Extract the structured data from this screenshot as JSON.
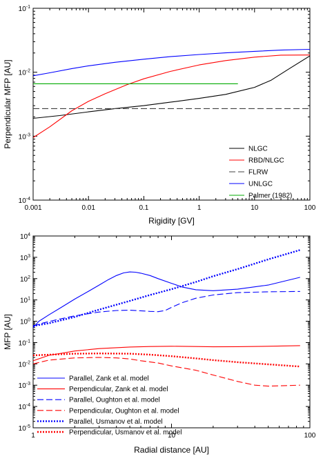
{
  "chart_data": [
    {
      "type": "line",
      "xscale": "log",
      "yscale": "log",
      "xlabel": "Rigidity [GV]",
      "ylabel": "Perpendicular MFP [AU]",
      "xlim": [
        0.001,
        100
      ],
      "ylim": [
        0.0001,
        0.1
      ],
      "x_ticks": [
        "0.001",
        "0.01",
        "0.1",
        "1",
        "10",
        "100"
      ],
      "y_ticks": [
        {
          "base": "10",
          "exp": "-4"
        },
        {
          "base": "10",
          "exp": "-3"
        },
        {
          "base": "10",
          "exp": "-2"
        },
        {
          "base": "10",
          "exp": "-1"
        }
      ],
      "legend_position": "lower-right",
      "series": [
        {
          "name": "NLGC",
          "color": "#000000",
          "style": "solid",
          "x": [
            0.001,
            0.003,
            0.01,
            0.03,
            0.1,
            0.3,
            1,
            3,
            10,
            20,
            40,
            100
          ],
          "y": [
            0.0019,
            0.0021,
            0.0024,
            0.0027,
            0.003,
            0.0034,
            0.0039,
            0.0045,
            0.0058,
            0.0075,
            0.011,
            0.018
          ]
        },
        {
          "name": "RBD/NLGC",
          "color": "#ff0000",
          "style": "solid",
          "x": [
            0.001,
            0.002,
            0.005,
            0.01,
            0.02,
            0.05,
            0.1,
            0.3,
            1,
            3,
            10,
            30,
            100
          ],
          "y": [
            0.00095,
            0.0014,
            0.0025,
            0.0035,
            0.0046,
            0.0064,
            0.0079,
            0.0103,
            0.013,
            0.0152,
            0.0172,
            0.0185,
            0.0186
          ]
        },
        {
          "name": "FLRW",
          "color": "#404040",
          "style": "dashed",
          "x": [
            0.001,
            100
          ],
          "y": [
            0.0027,
            0.0027
          ]
        },
        {
          "name": "UNLGC",
          "color": "#0000ff",
          "style": "solid",
          "x": [
            0.001,
            0.002,
            0.005,
            0.01,
            0.03,
            0.1,
            0.3,
            1,
            3,
            10,
            30,
            100
          ],
          "y": [
            0.0088,
            0.0098,
            0.0114,
            0.0126,
            0.0143,
            0.016,
            0.0175,
            0.0189,
            0.0201,
            0.0212,
            0.0222,
            0.0228
          ]
        },
        {
          "name": "Palmer (1982)",
          "color": "#00aa00",
          "style": "solid",
          "x": [
            0.001,
            5
          ],
          "y": [
            0.0066,
            0.0066
          ]
        }
      ]
    },
    {
      "type": "line",
      "xscale": "log",
      "yscale": "log",
      "xlabel": "Radial distance [AU]",
      "ylabel": "MFP [AU]",
      "xlim": [
        1,
        100
      ],
      "ylim": [
        1e-05,
        10000
      ],
      "x_ticks": [
        "1",
        "10",
        "100"
      ],
      "y_ticks": [
        {
          "base": "10",
          "exp": "-5"
        },
        {
          "base": "10",
          "exp": "-4"
        },
        {
          "base": "10",
          "exp": "-3"
        },
        {
          "base": "10",
          "exp": "-2"
        },
        {
          "base": "10",
          "exp": "-1"
        },
        {
          "base": "10",
          "exp": "0"
        },
        {
          "base": "10",
          "exp": "1"
        },
        {
          "base": "10",
          "exp": "2"
        },
        {
          "base": "10",
          "exp": "3"
        },
        {
          "base": "10",
          "exp": "4"
        }
      ],
      "legend_position": "lower-left",
      "series": [
        {
          "name": "Parallel, Zank et al. model",
          "color": "#0000ff",
          "style": "solid",
          "x": [
            1,
            1.1,
            1.3,
            1.6,
            2,
            2.5,
            3,
            3.5,
            4,
            4.5,
            5,
            5.5,
            6,
            7,
            8,
            10,
            12,
            15,
            20,
            30,
            50,
            85
          ],
          "y": [
            0.5,
            1.0,
            2.0,
            4.5,
            11,
            25,
            50,
            90,
            140,
            185,
            205,
            200,
            180,
            140,
            100,
            60,
            40,
            30,
            27,
            32,
            50,
            115
          ]
        },
        {
          "name": "Perpendicular, Zank et al. model",
          "color": "#ff0000",
          "style": "solid",
          "x": [
            1,
            1.3,
            2,
            3,
            5,
            7,
            10,
            15,
            20,
            30,
            50,
            85
          ],
          "y": [
            0.014,
            0.025,
            0.04,
            0.052,
            0.062,
            0.065,
            0.067,
            0.065,
            0.063,
            0.064,
            0.067,
            0.072
          ]
        },
        {
          "name": "Parallel, Oughton et al. model",
          "color": "#0000ff",
          "style": "dashed",
          "x": [
            1,
            1.2,
            1.5,
            2,
            3,
            4,
            5,
            6,
            7,
            8,
            9,
            10,
            12,
            15,
            20,
            30,
            50,
            85
          ],
          "y": [
            0.6,
            0.85,
            1.2,
            1.8,
            2.7,
            3.2,
            3.3,
            3.1,
            2.9,
            2.8,
            3.2,
            4.5,
            7.5,
            12,
            17,
            22,
            24,
            25
          ]
        },
        {
          "name": "Perpendicular, Oughton et al. model",
          "color": "#ff0000",
          "style": "dashed",
          "x": [
            1,
            1.3,
            2,
            3,
            4,
            5,
            6,
            8,
            10,
            15,
            20,
            30,
            40,
            50,
            85
          ],
          "y": [
            0.01,
            0.015,
            0.019,
            0.02,
            0.019,
            0.017,
            0.014,
            0.011,
            0.008,
            0.005,
            0.003,
            0.0015,
            0.001,
            0.0009,
            0.001
          ]
        },
        {
          "name": "Parallel, Usmanov et al. model",
          "color": "#0000ff",
          "style": "dotted",
          "x": [
            1,
            1.3,
            2,
            3,
            5,
            7,
            10,
            15,
            20,
            30,
            50,
            85
          ],
          "y": [
            0.6,
            0.8,
            1.6,
            3.5,
            9,
            17,
            32,
            70,
            130,
            280,
            800,
            2200
          ]
        },
        {
          "name": "Perpendicular, Usmanov et al. model",
          "color": "#ff0000",
          "style": "dotted",
          "x": [
            1,
            1.5,
            2,
            3,
            5,
            7,
            10,
            15,
            20,
            30,
            50,
            85
          ],
          "y": [
            0.025,
            0.028,
            0.03,
            0.031,
            0.03,
            0.027,
            0.023,
            0.018,
            0.015,
            0.012,
            0.0095,
            0.0075
          ]
        }
      ]
    }
  ]
}
